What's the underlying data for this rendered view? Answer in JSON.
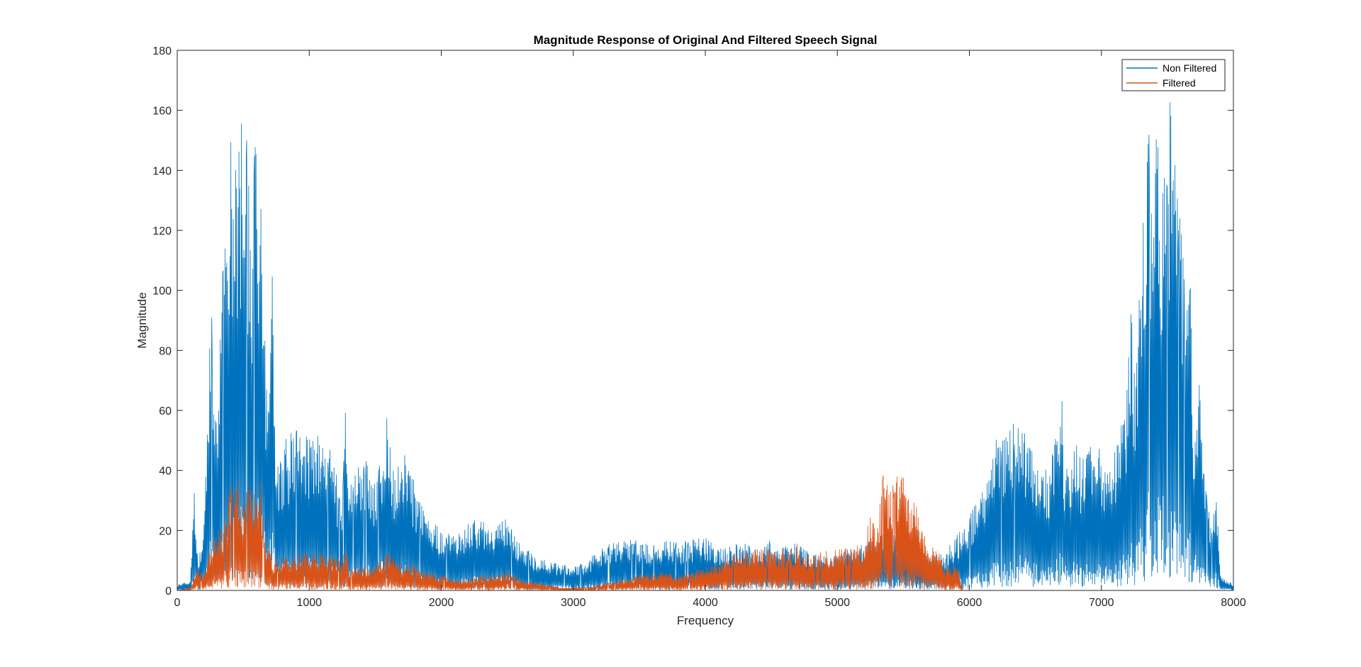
{
  "chart_data": {
    "type": "line",
    "title": "Magnitude Response of Original And Filtered Speech Signal",
    "xlabel": "Frequency",
    "ylabel": "Magnitude",
    "xlim": [
      0,
      8000
    ],
    "ylim": [
      0,
      180
    ],
    "xticks": [
      0,
      1000,
      2000,
      3000,
      4000,
      5000,
      6000,
      7000,
      8000
    ],
    "yticks": [
      0,
      20,
      40,
      60,
      80,
      100,
      120,
      140,
      160,
      180
    ],
    "grid": false,
    "legend_position": "top-right",
    "series": [
      {
        "name": "Non Filtered",
        "color": "#0072BD",
        "envelope": {
          "x": [
            0,
            100,
            130,
            160,
            200,
            230,
            260,
            300,
            350,
            400,
            430,
            450,
            480,
            500,
            530,
            560,
            600,
            630,
            650,
            680,
            700,
            720,
            750,
            780,
            800,
            850,
            900,
            950,
            1000,
            1050,
            1100,
            1150,
            1200,
            1250,
            1280,
            1300,
            1330,
            1400,
            1450,
            1500,
            1550,
            1600,
            1650,
            1700,
            1750,
            1800,
            1900,
            2000,
            2100,
            2200,
            2300,
            2400,
            2500,
            2600,
            2700,
            2800,
            2900,
            3000,
            3100,
            3200,
            3300,
            3400,
            3500,
            3600,
            3700,
            3800,
            3900,
            4000,
            4100,
            4200,
            4300,
            4400,
            4500,
            4600,
            4700,
            4800,
            4900,
            5000,
            5100,
            5200,
            5300,
            5400,
            5500,
            5600,
            5700,
            5800,
            5900,
            6000,
            6100,
            6200,
            6300,
            6400,
            6500,
            6600,
            6670,
            6700,
            6720,
            6750,
            6800,
            6850,
            6900,
            6950,
            7000,
            7050,
            7100,
            7150,
            7200,
            7220,
            7250,
            7280,
            7300,
            7330,
            7350,
            7370,
            7400,
            7420,
            7450,
            7470,
            7500,
            7520,
            7550,
            7570,
            7600,
            7640,
            7680,
            7700,
            7740,
            7770,
            7800,
            7840,
            7870,
            7900,
            8000
          ],
          "y": [
            2,
            3,
            36,
            8,
            25,
            65,
            103,
            50,
            115,
            164,
            140,
            155,
            163,
            140,
            160,
            130,
            169,
            150,
            130,
            60,
            80,
            105,
            40,
            45,
            50,
            52,
            55,
            50,
            55,
            52,
            50,
            48,
            40,
            30,
            70,
            30,
            40,
            42,
            45,
            35,
            50,
            60,
            40,
            46,
            45,
            35,
            25,
            20,
            18,
            22,
            25,
            22,
            25,
            15,
            12,
            10,
            9,
            8,
            10,
            14,
            16,
            18,
            17,
            15,
            17,
            16,
            17,
            18,
            14,
            16,
            16,
            14,
            17,
            15,
            16,
            12,
            12,
            12,
            14,
            16,
            20,
            18,
            20,
            15,
            12,
            12,
            18,
            25,
            35,
            50,
            55,
            60,
            45,
            40,
            55,
            70,
            45,
            40,
            50,
            45,
            50,
            45,
            50,
            40,
            50,
            55,
            70,
            105,
            80,
            100,
            140,
            130,
            170,
            155,
            160,
            165,
            140,
            160,
            150,
            165,
            155,
            140,
            125,
            100,
            104,
            60,
            70,
            50,
            30,
            20,
            36,
            5,
            2
          ]
        }
      },
      {
        "name": "Filtered",
        "color": "#D95319",
        "envelope": {
          "x": [
            0,
            100,
            150,
            200,
            250,
            300,
            350,
            400,
            450,
            500,
            550,
            600,
            630,
            650,
            680,
            700,
            720,
            750,
            800,
            900,
            1000,
            1100,
            1200,
            1250,
            1280,
            1300,
            1350,
            1400,
            1500,
            1600,
            1700,
            1800,
            1900,
            2000,
            2100,
            2200,
            2300,
            2400,
            2500,
            2600,
            2700,
            2800,
            2900,
            3000,
            3100,
            3200,
            3300,
            3400,
            3500,
            3600,
            3700,
            3800,
            3900,
            4000,
            4100,
            4200,
            4300,
            4400,
            4500,
            4600,
            4700,
            4750,
            4800,
            4900,
            5000,
            5100,
            5200,
            5250,
            5300,
            5350,
            5400,
            5450,
            5500,
            5550,
            5600,
            5650,
            5700,
            5750,
            5800,
            5850,
            5900,
            5950,
            8000
          ],
          "y": [
            0,
            1,
            8,
            5,
            15,
            20,
            22,
            35,
            38,
            30,
            38,
            32,
            40,
            22,
            12,
            20,
            8,
            10,
            12,
            12,
            13,
            13,
            12,
            10,
            16,
            6,
            8,
            8,
            9,
            13,
            10,
            8,
            6,
            5,
            4,
            4,
            5,
            5,
            6,
            4,
            3,
            2,
            1,
            1,
            1,
            2,
            3,
            4,
            5,
            6,
            6,
            5,
            6,
            8,
            10,
            12,
            13,
            14,
            14,
            13,
            16,
            12,
            12,
            13,
            14,
            14,
            16,
            27,
            20,
            42,
            35,
            38,
            38,
            32,
            28,
            20,
            14,
            16,
            10,
            8,
            10,
            0,
            0
          ]
        }
      }
    ]
  }
}
